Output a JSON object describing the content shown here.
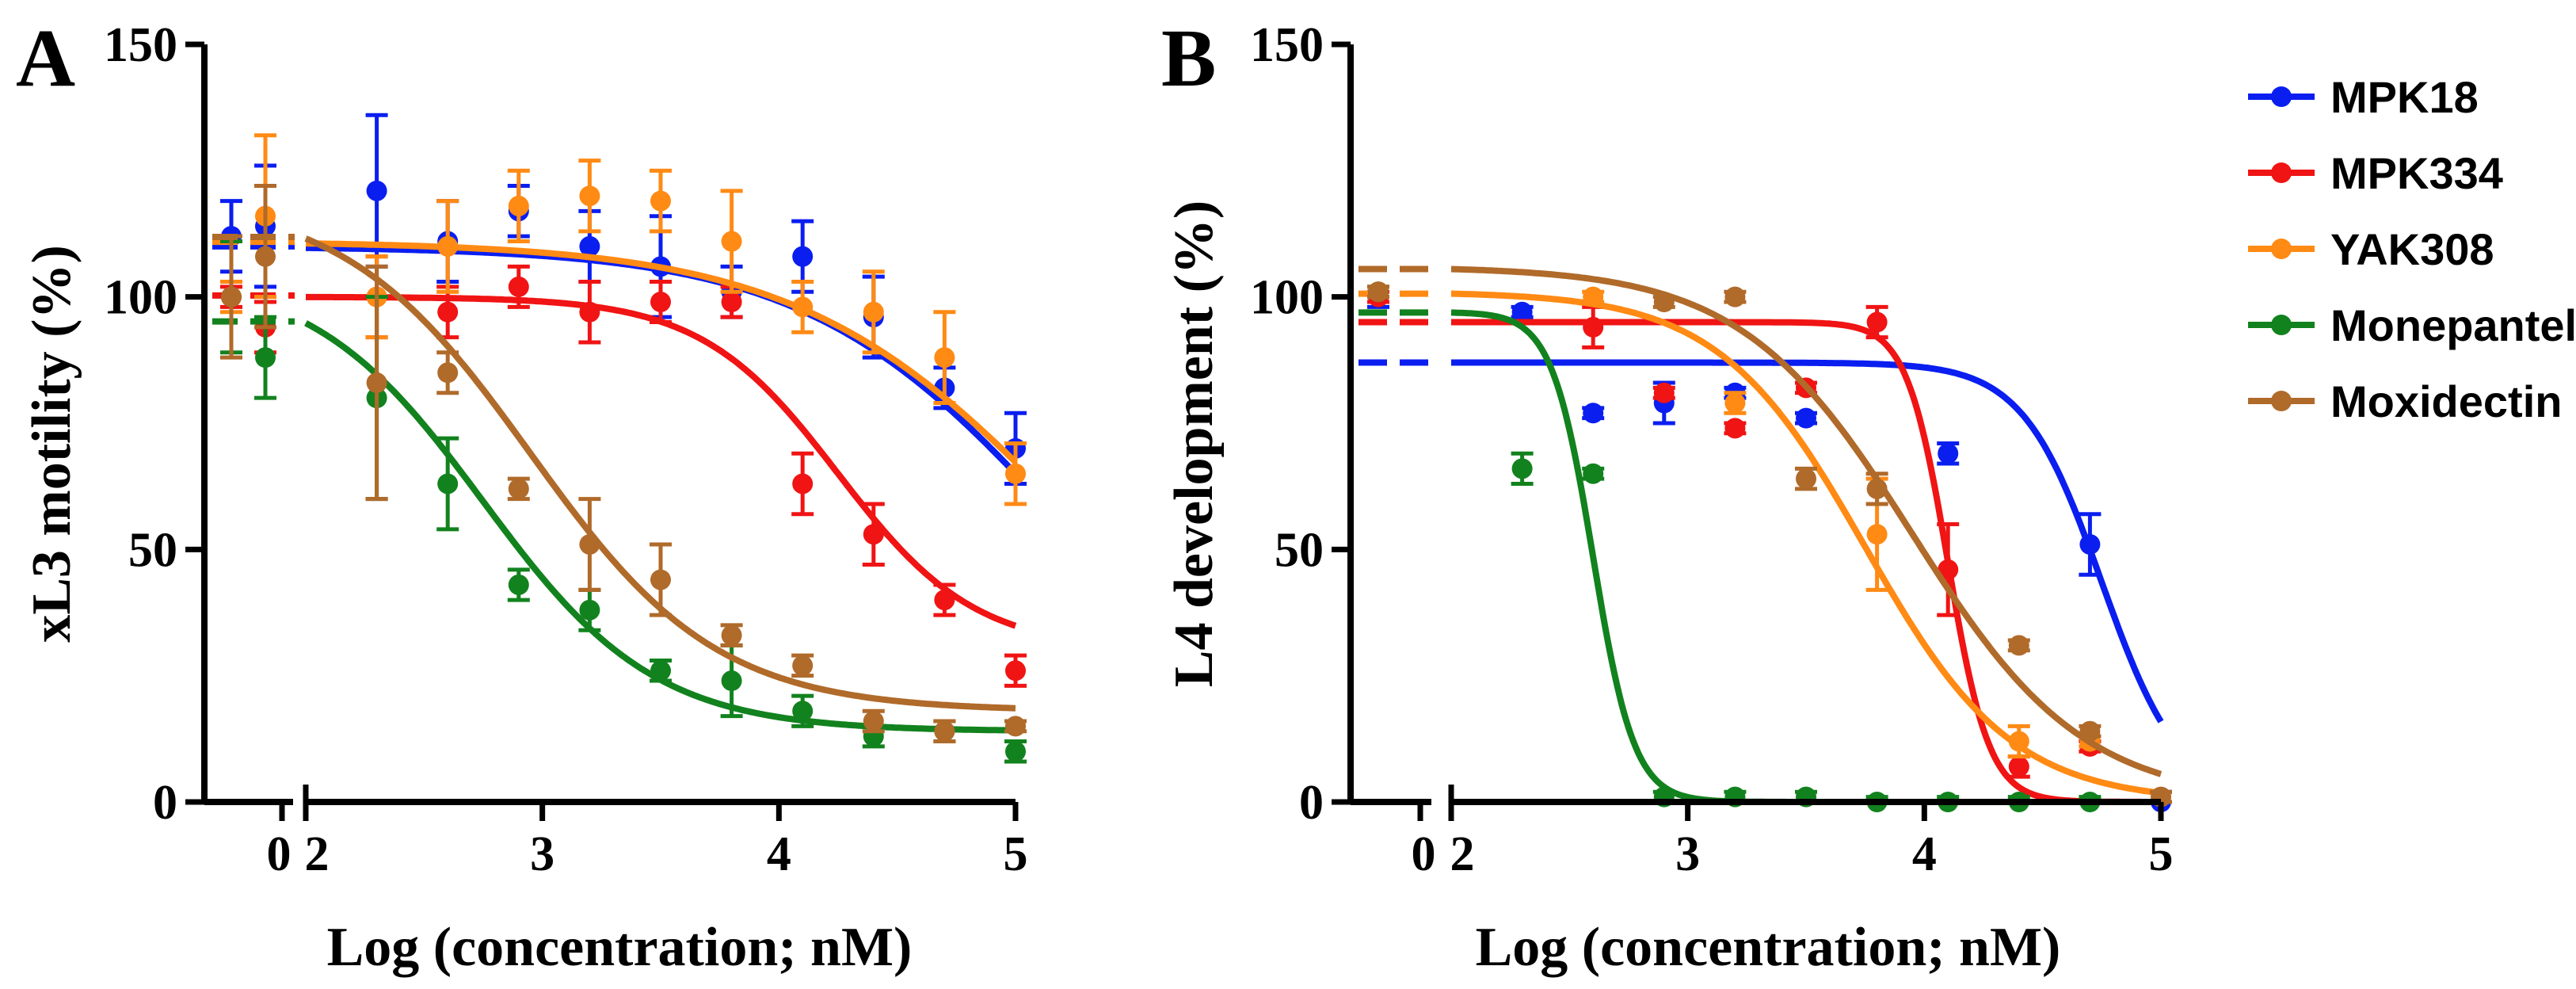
{
  "chart_data": [
    {
      "type": "scatter",
      "panel": "A",
      "xlabel": "Log (concentration; nM)",
      "ylabel": "xL3 motility (%)",
      "ylim": [
        0,
        150
      ],
      "yticks": [
        "0",
        "50",
        "100",
        "150"
      ],
      "control_tick": "0",
      "xlim": [
        2,
        5
      ],
      "xticks": [
        "2",
        "3",
        "4",
        "5"
      ],
      "series": [
        {
          "name": "MPK18",
          "color": "#0a1ef0",
          "points": [
            {
              "x": "ctrl1",
              "y": 112,
              "err": 7
            },
            {
              "x": "ctrl2",
              "y": 114,
              "err": 12
            },
            {
              "x": 2.3,
              "y": 121,
              "err": 15
            },
            {
              "x": 2.6,
              "y": 111,
              "err": 8
            },
            {
              "x": 2.9,
              "y": 117,
              "err": 5
            },
            {
              "x": 3.2,
              "y": 110,
              "err": 7
            },
            {
              "x": 3.5,
              "y": 106,
              "err": 10
            },
            {
              "x": 3.8,
              "y": 101,
              "err": 5
            },
            {
              "x": 4.1,
              "y": 108,
              "err": 7
            },
            {
              "x": 4.4,
              "y": 96,
              "err": 8
            },
            {
              "x": 4.7,
              "y": 82,
              "err": 4
            },
            {
              "x": 5.0,
              "y": 70,
              "err": 7
            }
          ],
          "fit": {
            "top": 110,
            "bottom": 0,
            "logec50": 5.2,
            "hill": -0.8,
            "start": 2.0
          }
        },
        {
          "name": "MPK334",
          "color": "#f01414",
          "points": [
            {
              "x": "ctrl1",
              "y": 100,
              "err": 2
            },
            {
              "x": "ctrl2",
              "y": 94,
              "err": 5
            },
            {
              "x": 2.3,
              "y": 100,
              "err": 8
            },
            {
              "x": 2.6,
              "y": 97,
              "err": 5
            },
            {
              "x": 2.9,
              "y": 102,
              "err": 4
            },
            {
              "x": 3.2,
              "y": 97,
              "err": 6
            },
            {
              "x": 3.5,
              "y": 99,
              "err": 4
            },
            {
              "x": 3.8,
              "y": 99,
              "err": 3
            },
            {
              "x": 4.1,
              "y": 63,
              "err": 6
            },
            {
              "x": 4.4,
              "y": 53,
              "err": 6
            },
            {
              "x": 4.7,
              "y": 40,
              "err": 3
            },
            {
              "x": 5.0,
              "y": 26,
              "err": 3
            }
          ],
          "fit": {
            "top": 100,
            "bottom": 30,
            "logec50": 4.25,
            "hill": -1.5,
            "start": 2.0
          }
        },
        {
          "name": "YAK308",
          "color": "#ff8a14",
          "points": [
            {
              "x": "ctrl1",
              "y": 100,
              "err": 3
            },
            {
              "x": "ctrl2",
              "y": 116,
              "err": 16
            },
            {
              "x": 2.3,
              "y": 100,
              "err": 8
            },
            {
              "x": 2.6,
              "y": 110,
              "err": 9
            },
            {
              "x": 2.9,
              "y": 118,
              "err": 7
            },
            {
              "x": 3.2,
              "y": 120,
              "err": 7
            },
            {
              "x": 3.5,
              "y": 119,
              "err": 6
            },
            {
              "x": 3.8,
              "y": 111,
              "err": 10
            },
            {
              "x": 4.1,
              "y": 98,
              "err": 5
            },
            {
              "x": 4.4,
              "y": 97,
              "err": 8
            },
            {
              "x": 4.7,
              "y": 88,
              "err": 9
            },
            {
              "x": 5.0,
              "y": 65,
              "err": 6
            }
          ],
          "fit": {
            "top": 111,
            "bottom": 0,
            "logec50": 5.25,
            "hill": -0.75,
            "start": 2.0
          }
        },
        {
          "name": "Monepantel",
          "color": "#12821e",
          "points": [
            {
              "x": "ctrl1",
              "y": 100,
              "err": 11
            },
            {
              "x": "ctrl2",
              "y": 88,
              "err": 8
            },
            {
              "x": 2.3,
              "y": 80,
              "err": 20
            },
            {
              "x": 2.6,
              "y": 63,
              "err": 9
            },
            {
              "x": 2.9,
              "y": 43,
              "err": 3
            },
            {
              "x": 3.2,
              "y": 38,
              "err": 4
            },
            {
              "x": 3.5,
              "y": 26,
              "err": 2
            },
            {
              "x": 3.8,
              "y": 24,
              "err": 7
            },
            {
              "x": 4.1,
              "y": 18,
              "err": 3
            },
            {
              "x": 4.4,
              "y": 13,
              "err": 2
            },
            {
              "x": 4.7,
              "y": 14,
              "err": 2
            },
            {
              "x": 5.0,
              "y": 10,
              "err": 2
            }
          ],
          "fit": {
            "top": 105,
            "bottom": 14,
            "logec50": 2.75,
            "hill": -1.2,
            "start": 2.0
          }
        },
        {
          "name": "Moxidectin",
          "color": "#b06a2a",
          "points": [
            {
              "x": "ctrl1",
              "y": 100,
              "err": 12
            },
            {
              "x": "ctrl2",
              "y": 108,
              "err": 14
            },
            {
              "x": 2.3,
              "y": 83,
              "err": 23
            },
            {
              "x": 2.6,
              "y": 85,
              "err": 4
            },
            {
              "x": 2.9,
              "y": 62,
              "err": 2
            },
            {
              "x": 3.2,
              "y": 51,
              "err": 9
            },
            {
              "x": 3.5,
              "y": 44,
              "err": 7
            },
            {
              "x": 3.8,
              "y": 33,
              "err": 2
            },
            {
              "x": 4.1,
              "y": 27,
              "err": 2
            },
            {
              "x": 4.4,
              "y": 16,
              "err": 2
            },
            {
              "x": 4.7,
              "y": 14,
              "err": 2
            },
            {
              "x": 5.0,
              "y": 15,
              "err": 1
            }
          ],
          "fit": {
            "top": 120,
            "bottom": 18,
            "logec50": 2.95,
            "hill": -1.1,
            "start": 2.0
          }
        }
      ],
      "legend": "none"
    },
    {
      "type": "scatter",
      "panel": "B",
      "xlabel": "Log (concentration; nM)",
      "ylabel": "L4 development (%)",
      "ylim": [
        0,
        150
      ],
      "yticks": [
        "0",
        "50",
        "100",
        "150"
      ],
      "control_tick": "0",
      "xlim": [
        2,
        5
      ],
      "xticks": [
        "2",
        "3",
        "4",
        "5"
      ],
      "series": [
        {
          "name": "MPK18",
          "color": "#0a1ef0",
          "points": [
            {
              "x": "ctrl1",
              "y": 100,
              "err": 2
            },
            {
              "x": 2.3,
              "y": 97,
              "err": 1
            },
            {
              "x": 2.6,
              "y": 77,
              "err": 1
            },
            {
              "x": 2.9,
              "y": 79,
              "err": 4
            },
            {
              "x": 3.2,
              "y": 81,
              "err": 1
            },
            {
              "x": 3.5,
              "y": 76,
              "err": 1
            },
            {
              "x": 4.1,
              "y": 69,
              "err": 2
            },
            {
              "x": 4.7,
              "y": 51,
              "err": 6
            },
            {
              "x": 5.0,
              "y": 0,
              "err": 2
            }
          ],
          "fit": {
            "top": 87,
            "bottom": 0,
            "logec50": 4.75,
            "hill": -2.6,
            "start": 1.5
          }
        },
        {
          "name": "MPK334",
          "color": "#f01414",
          "points": [
            {
              "x": "ctrl1",
              "y": 100,
              "err": 1
            },
            {
              "x": 2.6,
              "y": 94,
              "err": 4
            },
            {
              "x": 2.9,
              "y": 81,
              "err": 1
            },
            {
              "x": 3.2,
              "y": 74,
              "err": 1
            },
            {
              "x": 3.5,
              "y": 82,
              "err": 1
            },
            {
              "x": 3.8,
              "y": 95,
              "err": 3
            },
            {
              "x": 4.1,
              "y": 46,
              "err": 9
            },
            {
              "x": 4.4,
              "y": 7,
              "err": 2
            },
            {
              "x": 4.7,
              "y": 11,
              "err": 1
            }
          ],
          "fit": {
            "top": 95,
            "bottom": 0,
            "logec50": 4.1,
            "hill": -5,
            "start": 1.5
          }
        },
        {
          "name": "YAK308",
          "color": "#ff8a14",
          "points": [
            {
              "x": "ctrl1",
              "y": 101,
              "err": 1
            },
            {
              "x": 2.6,
              "y": 100,
              "err": 1
            },
            {
              "x": 3.2,
              "y": 79,
              "err": 2
            },
            {
              "x": 3.8,
              "y": 53,
              "err": 11
            },
            {
              "x": 4.4,
              "y": 12,
              "err": 3
            },
            {
              "x": 4.7,
              "y": 12,
              "err": 1
            }
          ],
          "fit": {
            "top": 101,
            "bottom": 0,
            "logec50": 3.75,
            "hill": -1.4,
            "start": 1.5
          }
        },
        {
          "name": "Monepantel",
          "color": "#12821e",
          "points": [
            {
              "x": "ctrl1",
              "y": 101,
              "err": 1
            },
            {
              "x": 2.3,
              "y": 66,
              "err": 3
            },
            {
              "x": 2.6,
              "y": 65,
              "err": 1
            },
            {
              "x": 2.9,
              "y": 1,
              "err": 1
            },
            {
              "x": 3.2,
              "y": 1,
              "err": 1
            },
            {
              "x": 3.5,
              "y": 1,
              "err": 1
            },
            {
              "x": 3.8,
              "y": 0,
              "err": 1
            },
            {
              "x": 4.1,
              "y": 0,
              "err": 1
            },
            {
              "x": 4.4,
              "y": 0,
              "err": 1
            },
            {
              "x": 4.7,
              "y": 0,
              "err": 1
            }
          ],
          "fit": {
            "top": 97,
            "bottom": 0,
            "logec50": 2.6,
            "hill": -5,
            "start": 1.5
          }
        },
        {
          "name": "Moxidectin",
          "color": "#b06a2a",
          "points": [
            {
              "x": "ctrl1",
              "y": 101,
              "err": 1
            },
            {
              "x": 2.9,
              "y": 99,
              "err": 1
            },
            {
              "x": 3.2,
              "y": 100,
              "err": 1
            },
            {
              "x": 3.5,
              "y": 64,
              "err": 2
            },
            {
              "x": 3.8,
              "y": 62,
              "err": 3
            },
            {
              "x": 4.4,
              "y": 31,
              "err": 1
            },
            {
              "x": 4.7,
              "y": 14,
              "err": 1
            },
            {
              "x": 5.0,
              "y": 1,
              "err": 1
            }
          ],
          "fit": {
            "top": 106,
            "bottom": 0,
            "logec50": 3.95,
            "hill": -1.2,
            "start": 1.5
          }
        }
      ],
      "legend": "right"
    }
  ]
}
